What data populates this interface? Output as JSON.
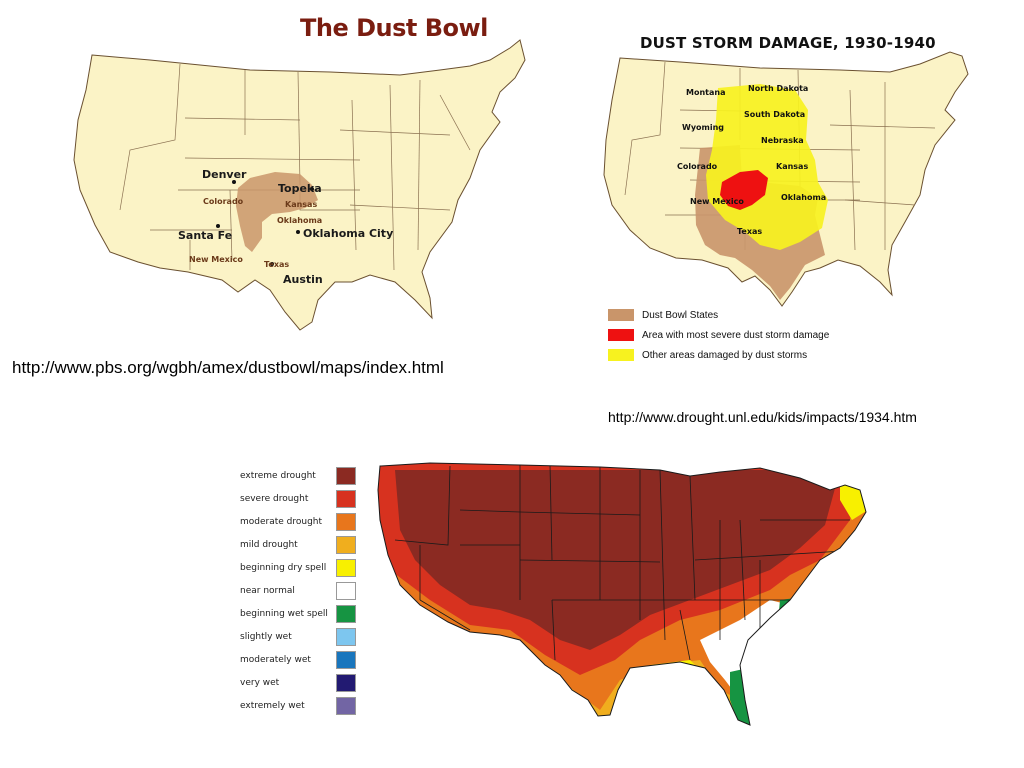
{
  "map1": {
    "title": "The Dust Bowl",
    "cities": [
      "Denver",
      "Topeka",
      "Santa Fe",
      "Oklahoma City",
      "Austin"
    ],
    "states": [
      "Colorado",
      "Kansas",
      "Oklahoma",
      "New Mexico",
      "Texas"
    ],
    "url": "http://www.pbs.org/wgbh/amex/dustbowl/maps/index.html"
  },
  "map2": {
    "title": "DUST STORM DAMAGE, 1930-1940",
    "states": [
      "Montana",
      "North Dakota",
      "South Dakota",
      "Wyoming",
      "Nebraska",
      "Colorado",
      "Kansas",
      "New Mexico",
      "Oklahoma",
      "Texas"
    ],
    "legend": [
      {
        "label": "Dust Bowl States",
        "color": "#c9956a"
      },
      {
        "label": "Area with most severe dust storm damage",
        "color": "#ee1111"
      },
      {
        "label": "Other areas damaged by dust storms",
        "color": "#f7f21f"
      }
    ],
    "url": "http://www.drought.unl.edu/kids/impacts/1934.htm"
  },
  "map3": {
    "legend": [
      {
        "label": "extreme drought",
        "color": "#8b2a22"
      },
      {
        "label": "severe drought",
        "color": "#d7321f"
      },
      {
        "label": "moderate drought",
        "color": "#e8761c"
      },
      {
        "label": "mild drought",
        "color": "#f0ae1e"
      },
      {
        "label": "beginning dry spell",
        "color": "#f8f000"
      },
      {
        "label": "near normal",
        "color": "#ffffff"
      },
      {
        "label": "beginning wet spell",
        "color": "#169442"
      },
      {
        "label": "slightly wet",
        "color": "#7dc6ef"
      },
      {
        "label": "moderately wet",
        "color": "#1976bd"
      },
      {
        "label": "very wet",
        "color": "#221a72"
      },
      {
        "label": "extremely wet",
        "color": "#7265a4"
      }
    ]
  }
}
